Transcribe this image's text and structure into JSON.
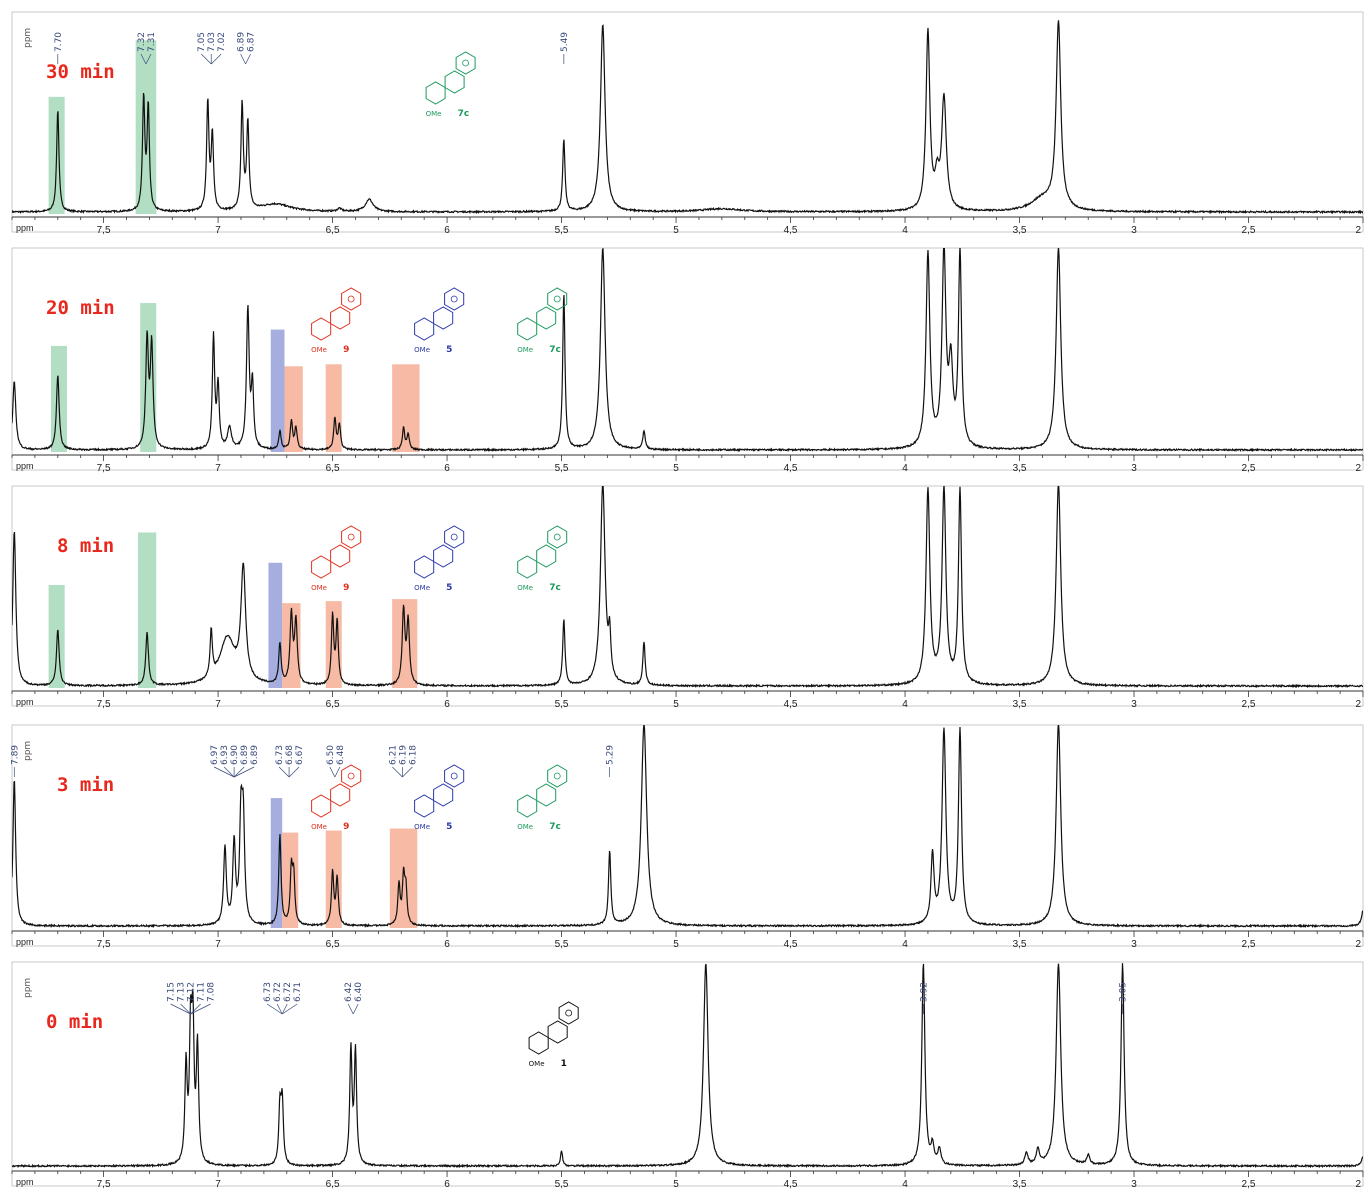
{
  "chart_data": {
    "type": "line",
    "xlabel": "ppm",
    "xlim": [
      7.9,
      2.0
    ],
    "x_ticks": [
      "7,5",
      "7",
      "6,5",
      "6",
      "5,5",
      "5",
      "4,5",
      "4",
      "3,5",
      "3",
      "2,5",
      "2"
    ],
    "shade_colors": {
      "green": "#9fd6b4",
      "red": "#f4a98f",
      "blue": "#8f9ad6"
    },
    "panels": [
      {
        "label": "30 min",
        "peak_labels": {
          "ppm_prefix": "ppm",
          "groups": [
            {
              "x": 7.7,
              "values": [
                "7.70"
              ]
            },
            {
              "x": 7.315,
              "values": [
                "7.32",
                "7.31"
              ]
            },
            {
              "x": 7.03,
              "values": [
                "7.05",
                "7.03",
                "7.02"
              ]
            },
            {
              "x": 6.88,
              "values": [
                "6.89",
                "6.87"
              ]
            },
            {
              "x": 5.49,
              "values": [
                "5.49"
              ]
            }
          ]
        },
        "structures": [
          {
            "x": 6.05,
            "color": "green",
            "label": "7c",
            "ome": "OMe"
          }
        ],
        "shaded": [
          {
            "from": 7.74,
            "to": 7.67,
            "color": "green",
            "h": 0.58
          },
          {
            "from": 7.36,
            "to": 7.27,
            "color": "green",
            "h": 0.86
          }
        ],
        "peaks": [
          [
            7.7,
            0.66,
            0.006
          ],
          [
            7.325,
            0.72,
            0.006
          ],
          [
            7.305,
            0.66,
            0.006
          ],
          [
            7.045,
            0.7,
            0.006
          ],
          [
            7.025,
            0.48,
            0.006
          ],
          [
            6.895,
            0.68,
            0.006
          ],
          [
            6.87,
            0.56,
            0.006
          ],
          [
            6.75,
            0.05,
            0.08
          ],
          [
            6.34,
            0.08,
            0.02
          ],
          [
            6.47,
            0.02,
            0.01
          ],
          [
            5.49,
            0.46,
            0.006
          ],
          [
            5.32,
            1.2,
            0.012
          ],
          [
            3.9,
            1.15,
            0.01
          ],
          [
            3.83,
            0.72,
            0.012
          ],
          [
            3.86,
            0.18,
            0.01
          ],
          [
            3.33,
            1.2,
            0.012
          ],
          [
            3.4,
            0.08,
            0.06
          ],
          [
            4.8,
            0.02,
            0.1
          ]
        ]
      },
      {
        "label": "20 min",
        "peak_labels": null,
        "structures": [
          {
            "x": 6.55,
            "color": "red",
            "label": "9",
            "ome": "OMe"
          },
          {
            "x": 6.1,
            "color": "blue",
            "label": "5",
            "ome": "OMe"
          },
          {
            "x": 5.65,
            "color": "green",
            "label": "7c",
            "ome": "OMe"
          }
        ],
        "shaded": [
          {
            "from": 7.73,
            "to": 7.66,
            "color": "green",
            "h": 0.52
          },
          {
            "from": 7.34,
            "to": 7.27,
            "color": "green",
            "h": 0.73
          },
          {
            "from": 6.77,
            "to": 6.71,
            "color": "blue",
            "h": 0.6
          },
          {
            "from": 6.71,
            "to": 6.63,
            "color": "red",
            "h": 0.42
          },
          {
            "from": 6.53,
            "to": 6.46,
            "color": "red",
            "h": 0.43
          },
          {
            "from": 6.24,
            "to": 6.12,
            "color": "red",
            "h": 0.43
          }
        ],
        "peaks": [
          [
            7.89,
            0.44,
            0.008
          ],
          [
            7.7,
            0.48,
            0.007
          ],
          [
            7.31,
            0.7,
            0.007
          ],
          [
            7.29,
            0.66,
            0.007
          ],
          [
            7.02,
            0.72,
            0.006
          ],
          [
            7.0,
            0.4,
            0.006
          ],
          [
            6.95,
            0.14,
            0.01
          ],
          [
            6.87,
            0.9,
            0.007
          ],
          [
            6.85,
            0.4,
            0.006
          ],
          [
            6.73,
            0.12,
            0.006
          ],
          [
            6.68,
            0.18,
            0.006
          ],
          [
            6.66,
            0.14,
            0.006
          ],
          [
            6.49,
            0.2,
            0.006
          ],
          [
            6.47,
            0.16,
            0.006
          ],
          [
            6.19,
            0.14,
            0.006
          ],
          [
            6.17,
            0.1,
            0.006
          ],
          [
            5.49,
            1.0,
            0.006
          ],
          [
            5.32,
            1.3,
            0.012
          ],
          [
            5.14,
            0.12,
            0.006
          ],
          [
            3.9,
            1.25,
            0.01
          ],
          [
            3.83,
            1.25,
            0.01
          ],
          [
            3.8,
            0.5,
            0.01
          ],
          [
            3.76,
            1.25,
            0.008
          ],
          [
            3.33,
            1.3,
            0.012
          ]
        ]
      },
      {
        "label": "8 min",
        "peak_labels": null,
        "structures": [
          {
            "x": 6.55,
            "color": "red",
            "label": "9",
            "ome": "OMe"
          },
          {
            "x": 6.1,
            "color": "blue",
            "label": "5",
            "ome": "OMe"
          },
          {
            "x": 5.65,
            "color": "green",
            "label": "7c",
            "ome": "OMe"
          }
        ],
        "shaded": [
          {
            "from": 7.74,
            "to": 7.67,
            "color": "green",
            "h": 0.51
          },
          {
            "from": 7.35,
            "to": 7.27,
            "color": "green",
            "h": 0.77
          },
          {
            "from": 6.78,
            "to": 6.72,
            "color": "blue",
            "h": 0.62
          },
          {
            "from": 6.72,
            "to": 6.64,
            "color": "red",
            "h": 0.42
          },
          {
            "from": 6.53,
            "to": 6.46,
            "color": "red",
            "h": 0.43
          },
          {
            "from": 6.24,
            "to": 6.13,
            "color": "red",
            "h": 0.44
          }
        ],
        "peaks": [
          [
            7.89,
            1.0,
            0.008
          ],
          [
            7.7,
            0.36,
            0.007
          ],
          [
            7.31,
            0.34,
            0.007
          ],
          [
            7.03,
            0.3,
            0.006
          ],
          [
            6.96,
            0.3,
            0.04
          ],
          [
            6.89,
            0.72,
            0.012
          ],
          [
            6.73,
            0.26,
            0.006
          ],
          [
            6.68,
            0.44,
            0.007
          ],
          [
            6.66,
            0.4,
            0.007
          ],
          [
            6.5,
            0.44,
            0.006
          ],
          [
            6.48,
            0.4,
            0.006
          ],
          [
            6.19,
            0.48,
            0.007
          ],
          [
            6.17,
            0.4,
            0.007
          ],
          [
            5.49,
            0.42,
            0.006
          ],
          [
            5.32,
            1.3,
            0.012
          ],
          [
            5.29,
            0.26,
            0.006
          ],
          [
            5.14,
            0.28,
            0.006
          ],
          [
            3.9,
            1.25,
            0.01
          ],
          [
            3.83,
            1.25,
            0.01
          ],
          [
            3.76,
            1.25,
            0.008
          ],
          [
            3.33,
            1.3,
            0.012
          ]
        ]
      },
      {
        "label": "3 min",
        "peak_labels": {
          "ppm_prefix": "ppm",
          "groups": [
            {
              "x": 7.89,
              "values": [
                "7.89"
              ]
            },
            {
              "x": 6.93,
              "values": [
                "6.97",
                "6.93",
                "6.90",
                "6.89",
                "6.89"
              ]
            },
            {
              "x": 6.69,
              "values": [
                "6.73",
                "6.68",
                "6.67"
              ]
            },
            {
              "x": 6.49,
              "values": [
                "6.50",
                "6.48"
              ]
            },
            {
              "x": 6.195,
              "values": [
                "6.21",
                "6.19",
                "6.18"
              ]
            },
            {
              "x": 5.29,
              "values": [
                "5.29"
              ]
            }
          ]
        },
        "structures": [
          {
            "x": 6.55,
            "color": "red",
            "label": "9",
            "ome": "OMe"
          },
          {
            "x": 6.1,
            "color": "blue",
            "label": "5",
            "ome": "OMe"
          },
          {
            "x": 5.65,
            "color": "green",
            "label": "7c",
            "ome": "OMe"
          }
        ],
        "shaded": [
          {
            "from": 6.77,
            "to": 6.72,
            "color": "blue",
            "h": 0.64
          },
          {
            "from": 6.72,
            "to": 6.65,
            "color": "red",
            "h": 0.47
          },
          {
            "from": 6.53,
            "to": 6.46,
            "color": "red",
            "h": 0.48
          },
          {
            "from": 6.25,
            "to": 6.13,
            "color": "red",
            "h": 0.49
          }
        ],
        "peaks": [
          [
            7.89,
            0.95,
            0.007
          ],
          [
            6.97,
            0.5,
            0.007
          ],
          [
            6.93,
            0.52,
            0.007
          ],
          [
            6.9,
            0.66,
            0.007
          ],
          [
            6.89,
            0.62,
            0.007
          ],
          [
            6.73,
            0.58,
            0.006
          ],
          [
            6.68,
            0.34,
            0.006
          ],
          [
            6.67,
            0.3,
            0.006
          ],
          [
            6.5,
            0.34,
            0.006
          ],
          [
            6.48,
            0.3,
            0.006
          ],
          [
            6.21,
            0.26,
            0.006
          ],
          [
            6.19,
            0.3,
            0.006
          ],
          [
            6.18,
            0.22,
            0.006
          ],
          [
            5.29,
            0.48,
            0.006
          ],
          [
            5.14,
            1.3,
            0.014
          ],
          [
            3.88,
            0.44,
            0.008
          ],
          [
            3.83,
            1.25,
            0.01
          ],
          [
            3.76,
            1.25,
            0.008
          ],
          [
            3.33,
            1.3,
            0.012
          ],
          [
            2.0,
            0.1,
            0.008
          ]
        ]
      },
      {
        "label": "0 min",
        "peak_labels": {
          "ppm_prefix": "ppm",
          "groups": [
            {
              "x": 7.12,
              "values": [
                "7.15",
                "7.13",
                "7.12",
                "7.11",
                "7.08"
              ]
            },
            {
              "x": 6.72,
              "values": [
                "6.73",
                "6.72",
                "6.72",
                "6.71"
              ]
            },
            {
              "x": 6.41,
              "values": [
                "6.42",
                "6.40"
              ]
            },
            {
              "x": 3.92,
              "values": [
                "3.92"
              ]
            },
            {
              "x": 3.05,
              "values": [
                "3.05"
              ]
            }
          ]
        },
        "structures": [
          {
            "x": 5.6,
            "color": "black",
            "label": "1",
            "ome": "OMe"
          }
        ],
        "shaded": [],
        "peaks": [
          [
            7.14,
            0.62,
            0.006
          ],
          [
            7.12,
            0.8,
            0.006
          ],
          [
            7.11,
            0.84,
            0.006
          ],
          [
            7.09,
            0.74,
            0.006
          ],
          [
            6.73,
            0.36,
            0.006
          ],
          [
            6.72,
            0.4,
            0.006
          ],
          [
            6.42,
            0.74,
            0.006
          ],
          [
            6.4,
            0.72,
            0.006
          ],
          [
            5.5,
            0.1,
            0.005
          ],
          [
            4.87,
            1.3,
            0.012
          ],
          [
            3.92,
            1.3,
            0.008
          ],
          [
            3.88,
            0.12,
            0.008
          ],
          [
            3.85,
            0.1,
            0.008
          ],
          [
            3.47,
            0.08,
            0.008
          ],
          [
            3.42,
            0.1,
            0.008
          ],
          [
            3.33,
            1.3,
            0.012
          ],
          [
            3.2,
            0.06,
            0.008
          ],
          [
            3.05,
            1.3,
            0.008
          ],
          [
            2.0,
            0.06,
            0.008
          ]
        ]
      }
    ]
  }
}
